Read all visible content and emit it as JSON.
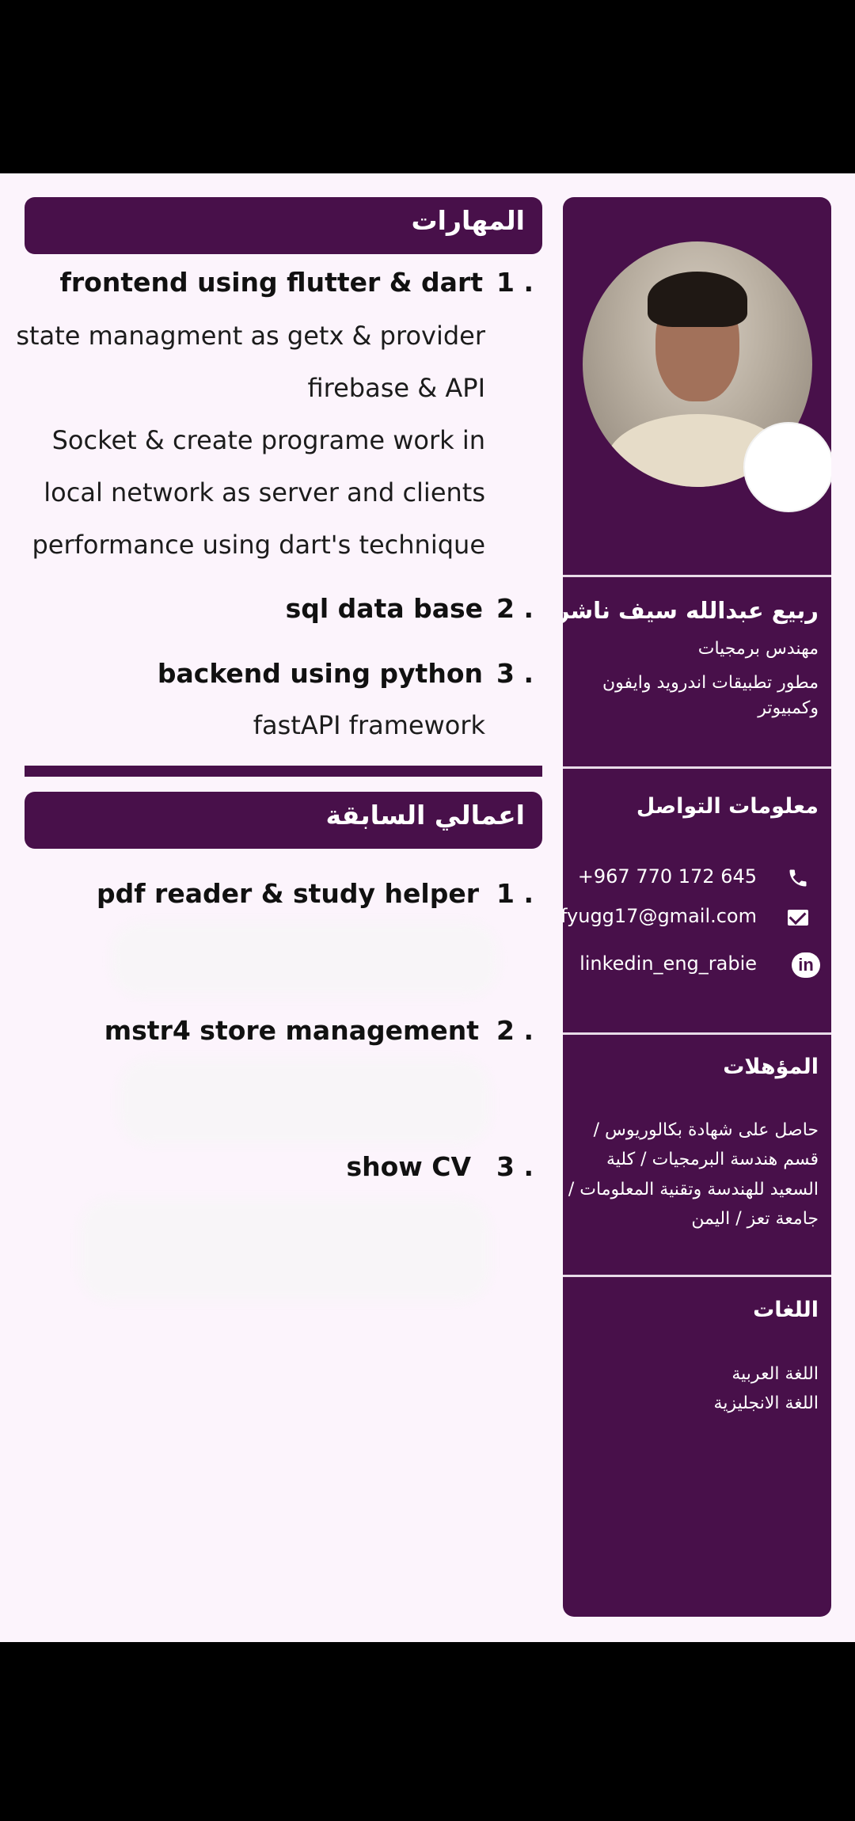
{
  "sidebar": {
    "name": "ربيع عبدالله سيف ناشر",
    "title": "مهندس برمجيات",
    "description": "مطور تطبيقات اندرويد وايفون وكمبيوتر",
    "contact": {
      "heading": "معلومات التواصل",
      "phone": "+967 770 172 645",
      "email": "fyugg17@gmail.com",
      "linkedin": "linkedin_eng_rabie",
      "linkedin_icon_text": "in"
    },
    "qualifications": {
      "heading": "المؤهلات",
      "text": "حاصل على شهادة بكالوريوس / قسم هندسة البرمجيات / كلية السعيد للهندسة وتقنية المعلومات / جامعة تعز / اليمن"
    },
    "languages": {
      "heading": "اللغات",
      "items": [
        "اللغة العربية",
        "اللغة الانجليزية"
      ]
    }
  },
  "skills": {
    "heading": "المهارات",
    "items": [
      {
        "num": "1 .",
        "title": "frontend using  flutter & dart",
        "details": [
          "state managment as getx & provider",
          "firebase & API",
          "Socket & create programe work in",
          "local network as server and clients",
          "performance using dart's technique"
        ]
      },
      {
        "num": "2 .",
        "title": "sql data base",
        "details": []
      },
      {
        "num": "3 .",
        "title": "backend using python",
        "details": [
          "fastAPI framework"
        ]
      }
    ]
  },
  "projects": {
    "heading": "اعمالي السابقة",
    "items": [
      {
        "num": "1 .",
        "title": "pdf reader & study helper"
      },
      {
        "num": "2 .",
        "title": "mstr4 store management"
      },
      {
        "num": "3 .",
        "title": "show CV"
      }
    ]
  },
  "colors": {
    "accent": "#48104a",
    "page_background": "#fcf4fc"
  }
}
